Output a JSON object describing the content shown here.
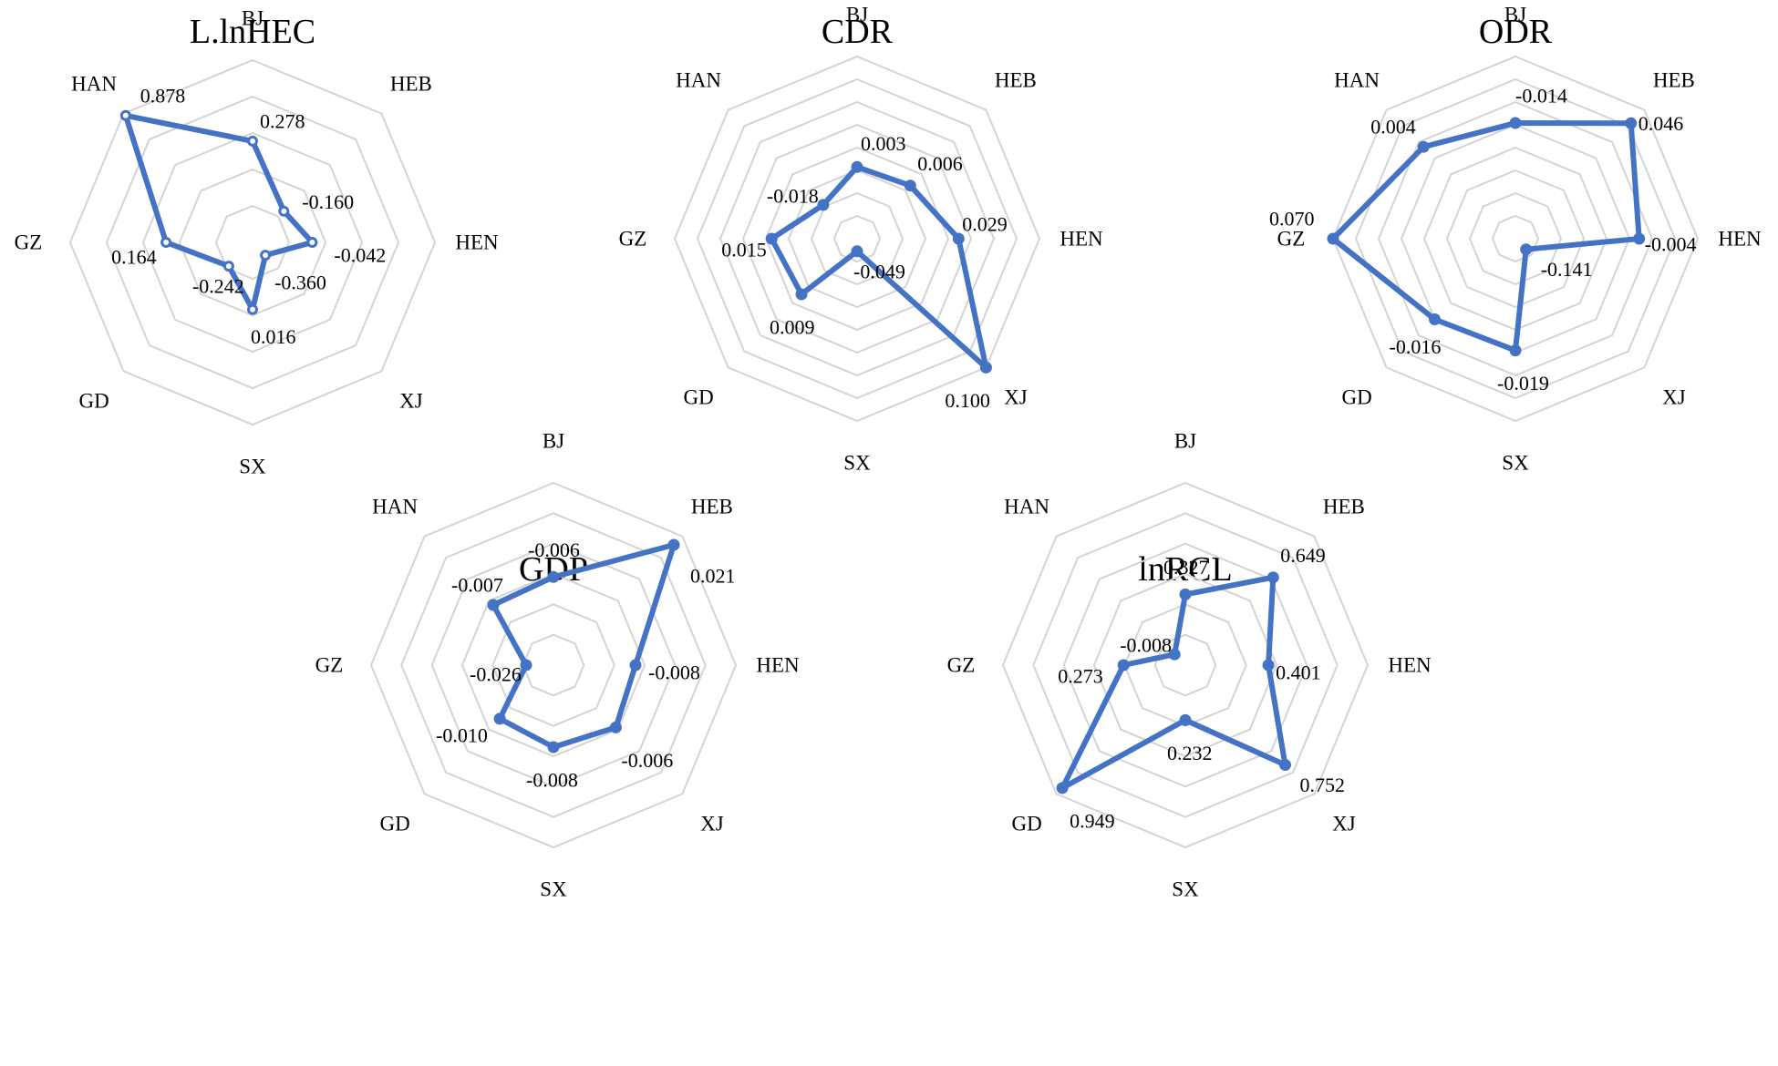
{
  "figure": {
    "categories": [
      "BJ",
      "HEB",
      "HEN",
      "XJ",
      "SX",
      "GD",
      "GZ",
      "HAN"
    ],
    "colors": {
      "series": "#4472c4",
      "grid": "#d4d4d4",
      "text": "#000000"
    }
  },
  "chart_data": [
    {
      "type": "radar",
      "title": "L.lnHEC",
      "categories": [
        "BJ",
        "HEB",
        "HEN",
        "XJ",
        "SX",
        "GD",
        "GZ",
        "HAN"
      ],
      "values": [
        0.278,
        -0.16,
        -0.042,
        -0.36,
        0.016,
        -0.242,
        0.164,
        0.878
      ],
      "labels": [
        "0.278",
        "-0.160",
        "-0.042",
        "-0.360",
        "0.016",
        "-0.242",
        "0.164",
        "0.878"
      ],
      "rlim": [
        -0.5,
        0.9
      ],
      "rings": 5,
      "marker": "hollow"
    },
    {
      "type": "radar",
      "title": "CDR",
      "categories": [
        "BJ",
        "HEB",
        "HEN",
        "XJ",
        "SX",
        "GD",
        "GZ",
        "HAN"
      ],
      "values": [
        0.003,
        0.006,
        0.029,
        0.1,
        -0.049,
        0.009,
        0.015,
        -0.018
      ],
      "labels": [
        "0.003",
        "0.006",
        "0.029",
        "0.100",
        "-0.049",
        "0.009",
        "0.015",
        "-0.018"
      ],
      "rlim": [
        -0.06,
        0.1
      ],
      "rings": 8,
      "marker": "solid"
    },
    {
      "type": "radar",
      "title": "ODR",
      "categories": [
        "BJ",
        "HEB",
        "HEN",
        "XJ",
        "SX",
        "GD",
        "GZ",
        "HAN"
      ],
      "values": [
        -0.014,
        0.046,
        -0.004,
        -0.141,
        -0.019,
        -0.016,
        0.07,
        0.004
      ],
      "labels": [
        "-0.014",
        "0.046",
        "-0.004",
        "-0.141",
        "-0.019",
        "-0.016",
        "0.070",
        "0.004"
      ],
      "rlim": [
        -0.16,
        0.07
      ],
      "rings": 8,
      "marker": "solid"
    },
    {
      "type": "radar",
      "title": "GDP",
      "categories": [
        "BJ",
        "HEB",
        "HEN",
        "XJ",
        "SX",
        "GD",
        "GZ",
        "HAN"
      ],
      "values": [
        -0.006,
        0.021,
        -0.008,
        -0.006,
        -0.008,
        -0.01,
        -0.026,
        -0.007
      ],
      "labels": [
        "-0.006",
        "0.021",
        "-0.008",
        "-0.006",
        "-0.008",
        "-0.010",
        "-0.026",
        "-0.007"
      ],
      "rlim": [
        -0.035,
        0.025
      ],
      "rings": 6,
      "marker": "solid"
    },
    {
      "type": "radar",
      "title": "lnRCL",
      "categories": [
        "BJ",
        "HEB",
        "HEN",
        "XJ",
        "SX",
        "GD",
        "GZ",
        "HAN"
      ],
      "values": [
        0.327,
        0.649,
        0.401,
        0.752,
        0.232,
        0.949,
        0.273,
        -0.008
      ],
      "labels": [
        "0.327",
        "0.649",
        "0.401",
        "0.752",
        "0.232",
        "0.949",
        "0.273",
        "-0.008"
      ],
      "rlim": [
        -0.1,
        1.0
      ],
      "rings": 6,
      "marker": "solid"
    }
  ]
}
